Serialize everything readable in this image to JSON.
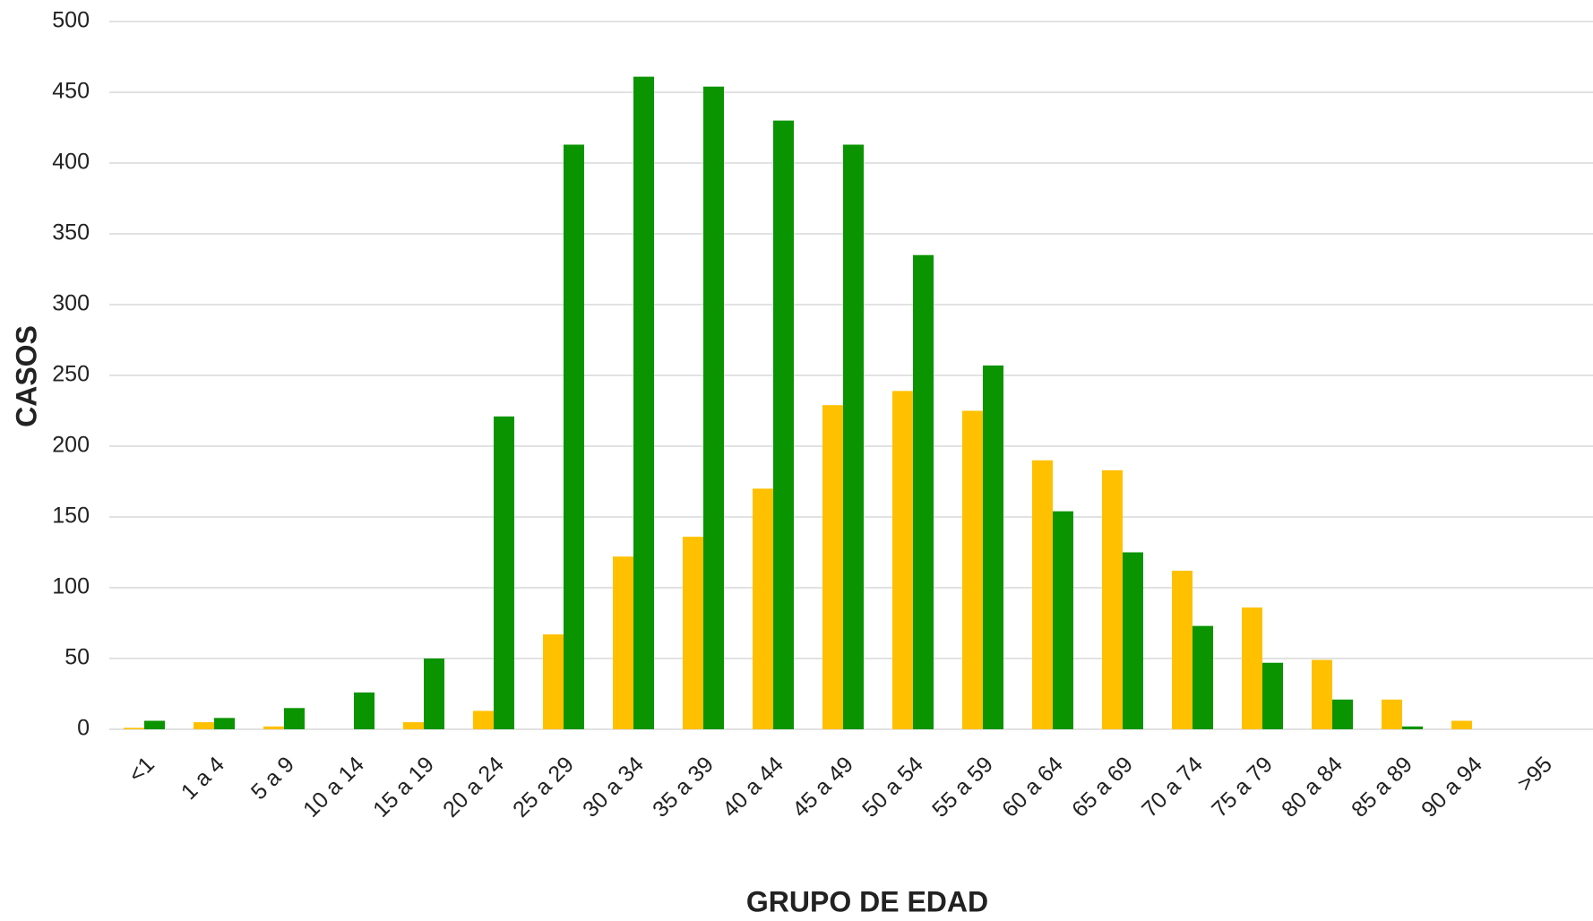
{
  "chart_data": {
    "type": "bar",
    "categories": [
      "<1",
      "1 a 4",
      "5 a 9",
      "10 a 14",
      "15 a 19",
      "20 a 24",
      "25 a 29",
      "30 a 34",
      "35 a 39",
      "40 a 44",
      "45 a 49",
      "50 a 54",
      "55 a 59",
      "60 a 64",
      "65 a 69",
      "70 a 74",
      "75 a 79",
      "80 a 84",
      "85 a 89",
      "90 a 94",
      ">95"
    ],
    "series": [
      {
        "color": "#ffc000",
        "values": [
          1,
          5,
          2,
          0,
          5,
          13,
          67,
          122,
          136,
          170,
          229,
          239,
          225,
          190,
          183,
          112,
          86,
          49,
          21,
          6,
          0
        ]
      },
      {
        "color": "#0a9400",
        "values": [
          6,
          8,
          15,
          26,
          50,
          221,
          413,
          461,
          454,
          430,
          413,
          335,
          257,
          154,
          125,
          73,
          47,
          21,
          2,
          0,
          0
        ]
      }
    ],
    "ylim": [
      0,
      500
    ],
    "yticks": [
      0,
      50,
      100,
      150,
      200,
      250,
      300,
      350,
      400,
      450,
      500
    ],
    "grid": true,
    "x_label": "GRUPO DE EDAD",
    "y_label": "CASOS"
  }
}
